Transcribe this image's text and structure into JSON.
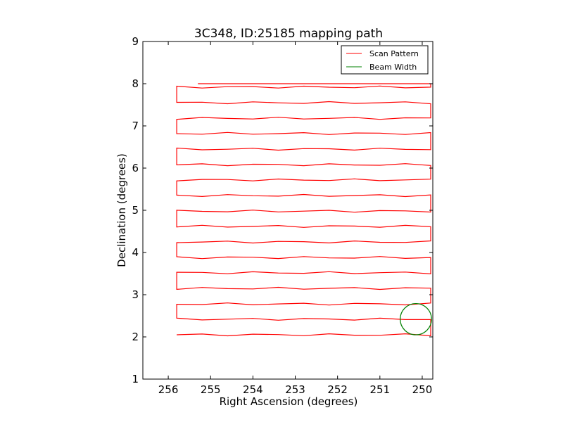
{
  "chart_data": {
    "type": "line",
    "title": "3C348, ID:25185 mapping path",
    "xlabel": "Right Ascension (degrees)",
    "ylabel": "Declination (degrees)",
    "xlim": [
      256.6,
      249.75
    ],
    "ylim": [
      1,
      9
    ],
    "xticks": [
      256,
      255,
      254,
      253,
      252,
      251,
      250
    ],
    "yticks": [
      1,
      2,
      3,
      4,
      5,
      6,
      7,
      8,
      9
    ],
    "grid": false,
    "legend_position": "top-right",
    "legend": [
      "Scan Pattern",
      "Beam Width"
    ],
    "colors": {
      "scan": "#ff0000",
      "beam": "#008000"
    },
    "scan_pattern": {
      "name": "Scan Pattern",
      "rows_dec": [
        2.05,
        2.42,
        2.78,
        3.15,
        3.52,
        3.88,
        4.25,
        4.62,
        4.98,
        5.35,
        5.72,
        6.08,
        6.45,
        6.82,
        7.18,
        7.55,
        7.92
      ],
      "ra_start": 255.8,
      "ra_end": 249.8,
      "last_line": {
        "ra": [
          255.3,
          250.2,
          249.8
        ],
        "dec": [
          8.0,
          8.0,
          8.0
        ]
      }
    },
    "beam_width": {
      "name": "Beam Width",
      "center": [
        250.15,
        2.42
      ],
      "radius_deg": 0.37
    }
  }
}
